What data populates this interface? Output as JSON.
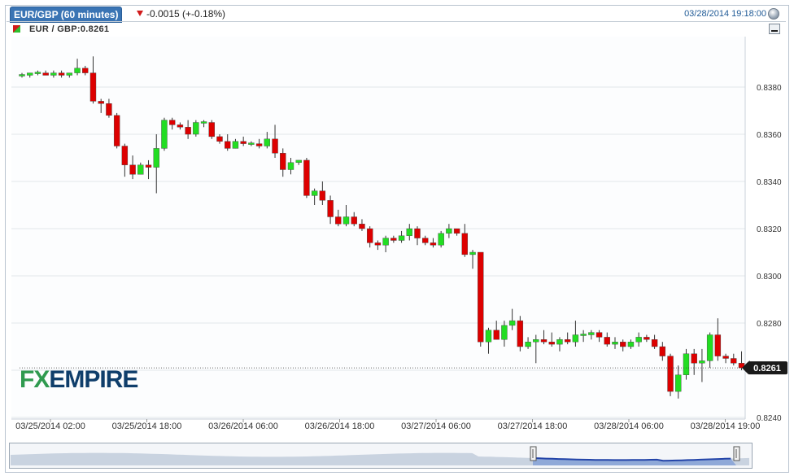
{
  "header": {
    "tab_title": "EUR/GBP (60 minutes)",
    "change": "-0.0015 (+-0.18%)",
    "datetime": "03/28/2014 19:18:00",
    "instrument": "EUR / GBP:0.8261"
  },
  "colors": {
    "up": "#22dd22",
    "down": "#dd0000",
    "wick": "#333333",
    "grid": "#e2e6ea",
    "price_label_bg": "#1a1a1a",
    "accent": "#3a74b4"
  },
  "icons": {
    "settings": "settings-icon",
    "minimize": "minimize-icon"
  },
  "logo": {
    "fx": "FX",
    "rest": "EMPIRE"
  },
  "chart_data": {
    "type": "candlestick",
    "instrument": "EUR / GBP",
    "interval": "60 minutes",
    "current_price": 0.8261,
    "current_price_label": "0.8261",
    "ylim": [
      0.824,
      0.8395
    ],
    "yticks": [
      "0.8380",
      "0.8360",
      "0.8340",
      "0.8320",
      "0.8300",
      "0.8280",
      "0.8260",
      "0.8240"
    ],
    "xtick_labels": [
      "03/25/2014 02:00",
      "03/25/2014 18:00",
      "03/26/2014 06:00",
      "03/26/2014 18:00",
      "03/27/2014 06:00",
      "03/27/2014 18:00",
      "03/28/2014 06:00",
      "03/28/2014 19:00"
    ],
    "candles": [
      [
        0.8385,
        0.8386,
        0.8384,
        0.8385
      ],
      [
        0.8385,
        0.8386,
        0.8384,
        0.8386
      ],
      [
        0.8386,
        0.8387,
        0.8385,
        0.8386
      ],
      [
        0.8386,
        0.8387,
        0.8385,
        0.8385
      ],
      [
        0.8385,
        0.8387,
        0.8384,
        0.8386
      ],
      [
        0.8386,
        0.8387,
        0.8384,
        0.8385
      ],
      [
        0.8385,
        0.8386,
        0.8384,
        0.8386
      ],
      [
        0.8386,
        0.8392,
        0.8385,
        0.8388
      ],
      [
        0.8388,
        0.8389,
        0.8385,
        0.8386
      ],
      [
        0.8386,
        0.8393,
        0.8373,
        0.8374
      ],
      [
        0.8374,
        0.8375,
        0.8369,
        0.8373
      ],
      [
        0.8373,
        0.8375,
        0.8367,
        0.8368
      ],
      [
        0.8368,
        0.8369,
        0.8354,
        0.8355
      ],
      [
        0.8355,
        0.8356,
        0.8342,
        0.8347
      ],
      [
        0.8347,
        0.8351,
        0.8341,
        0.8343
      ],
      [
        0.8343,
        0.8348,
        0.8343,
        0.8347
      ],
      [
        0.8347,
        0.8349,
        0.8341,
        0.8346
      ],
      [
        0.8346,
        0.836,
        0.8335,
        0.8354
      ],
      [
        0.8354,
        0.8367,
        0.8353,
        0.8366
      ],
      [
        0.8366,
        0.8367,
        0.8362,
        0.8364
      ],
      [
        0.8364,
        0.8365,
        0.8362,
        0.8363
      ],
      [
        0.8363,
        0.8366,
        0.8358,
        0.836
      ],
      [
        0.836,
        0.8366,
        0.8359,
        0.8365
      ],
      [
        0.8365,
        0.8366,
        0.8363,
        0.8365
      ],
      [
        0.8365,
        0.8366,
        0.8358,
        0.8359
      ],
      [
        0.8359,
        0.836,
        0.8356,
        0.8357
      ],
      [
        0.8357,
        0.836,
        0.8353,
        0.8354
      ],
      [
        0.8354,
        0.8358,
        0.8354,
        0.8357
      ],
      [
        0.8357,
        0.8359,
        0.8355,
        0.8356
      ],
      [
        0.8356,
        0.8357,
        0.8355,
        0.8356
      ],
      [
        0.8356,
        0.8358,
        0.8354,
        0.8355
      ],
      [
        0.8355,
        0.8361,
        0.8354,
        0.8358
      ],
      [
        0.8358,
        0.8364,
        0.835,
        0.8352
      ],
      [
        0.8352,
        0.8354,
        0.8342,
        0.8345
      ],
      [
        0.8345,
        0.835,
        0.8343,
        0.8348
      ],
      [
        0.8348,
        0.8349,
        0.8347,
        0.8349
      ],
      [
        0.8349,
        0.835,
        0.8333,
        0.8334
      ],
      [
        0.8334,
        0.8337,
        0.833,
        0.8336
      ],
      [
        0.8336,
        0.834,
        0.833,
        0.8332
      ],
      [
        0.8332,
        0.8334,
        0.8322,
        0.8325
      ],
      [
        0.8325,
        0.8328,
        0.8321,
        0.8322
      ],
      [
        0.8322,
        0.833,
        0.8321,
        0.8325
      ],
      [
        0.8325,
        0.8327,
        0.8321,
        0.8322
      ],
      [
        0.8322,
        0.8324,
        0.8319,
        0.832
      ],
      [
        0.832,
        0.8321,
        0.8312,
        0.8314
      ],
      [
        0.8314,
        0.8315,
        0.8311,
        0.8313
      ],
      [
        0.8313,
        0.8317,
        0.831,
        0.8316
      ],
      [
        0.8316,
        0.8317,
        0.8314,
        0.8315
      ],
      [
        0.8315,
        0.8319,
        0.8314,
        0.8317
      ],
      [
        0.8317,
        0.8322,
        0.8315,
        0.832
      ],
      [
        0.832,
        0.8321,
        0.8313,
        0.8316
      ],
      [
        0.8316,
        0.8317,
        0.8313,
        0.8314
      ],
      [
        0.8314,
        0.8316,
        0.8312,
        0.8313
      ],
      [
        0.8313,
        0.8319,
        0.8312,
        0.8318
      ],
      [
        0.8318,
        0.8322,
        0.8316,
        0.832
      ],
      [
        0.832,
        0.832,
        0.8317,
        0.8318
      ],
      [
        0.8318,
        0.8322,
        0.8308,
        0.8309
      ],
      [
        0.8309,
        0.8311,
        0.8303,
        0.831
      ],
      [
        0.831,
        0.831,
        0.827,
        0.8272
      ],
      [
        0.8272,
        0.8278,
        0.8267,
        0.8277
      ],
      [
        0.8277,
        0.8281,
        0.8273,
        0.8273
      ],
      [
        0.8273,
        0.8281,
        0.827,
        0.8279
      ],
      [
        0.8279,
        0.8286,
        0.8277,
        0.8281
      ],
      [
        0.8281,
        0.8283,
        0.8268,
        0.827
      ],
      [
        0.827,
        0.8274,
        0.8269,
        0.8272
      ],
      [
        0.8272,
        0.8275,
        0.8263,
        0.8273
      ],
      [
        0.8273,
        0.8277,
        0.8271,
        0.8272
      ],
      [
        0.8272,
        0.8276,
        0.827,
        0.8271
      ],
      [
        0.8271,
        0.8274,
        0.8268,
        0.8273
      ],
      [
        0.8273,
        0.8276,
        0.8271,
        0.8272
      ],
      [
        0.8272,
        0.8281,
        0.827,
        0.8275
      ],
      [
        0.8275,
        0.8277,
        0.8272,
        0.8275
      ],
      [
        0.8275,
        0.8277,
        0.8273,
        0.8276
      ],
      [
        0.8276,
        0.8277,
        0.8272,
        0.8274
      ],
      [
        0.8274,
        0.8276,
        0.827,
        0.8271
      ],
      [
        0.8271,
        0.8274,
        0.8269,
        0.8272
      ],
      [
        0.8272,
        0.8273,
        0.8268,
        0.827
      ],
      [
        0.827,
        0.8273,
        0.8269,
        0.8272
      ],
      [
        0.8272,
        0.8276,
        0.827,
        0.8274
      ],
      [
        0.8274,
        0.8275,
        0.8272,
        0.8273
      ],
      [
        0.8273,
        0.8275,
        0.8269,
        0.827
      ],
      [
        0.827,
        0.8272,
        0.8264,
        0.8266
      ],
      [
        0.8266,
        0.8267,
        0.8249,
        0.8251
      ],
      [
        0.8251,
        0.8262,
        0.8248,
        0.8258
      ],
      [
        0.8258,
        0.8269,
        0.8256,
        0.8267
      ],
      [
        0.8267,
        0.8269,
        0.8258,
        0.8263
      ],
      [
        0.8263,
        0.8269,
        0.8255,
        0.8264
      ],
      [
        0.8264,
        0.8276,
        0.8261,
        0.8275
      ],
      [
        0.8275,
        0.8282,
        0.8264,
        0.8266
      ],
      [
        0.8266,
        0.8267,
        0.8263,
        0.8265
      ],
      [
        0.8265,
        0.8267,
        0.8262,
        0.8263
      ],
      [
        0.8263,
        0.8268,
        0.826,
        0.8261
      ],
      [
        0.8261,
        0.8264,
        0.8259,
        0.8261
      ],
      [
        0.8261,
        0.8261,
        0.8261,
        0.8261
      ]
    ]
  }
}
